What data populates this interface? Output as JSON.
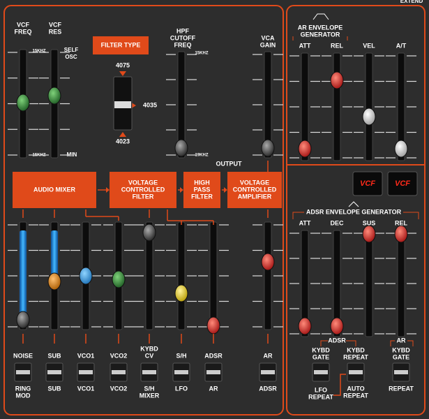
{
  "extend": "EXTEND",
  "vcf_freq": [
    "VCF",
    "FREQ"
  ],
  "vcf_res": [
    "VCF",
    "RES"
  ],
  "self_osc": [
    "SELF",
    "OSC"
  ],
  "scale": {
    "vcf_freq_top": "15KHZ",
    "vcf_freq_bottom": "15KHZ",
    "vcf_res_bottom": "MIN",
    "hpf_top": "15KHZ",
    "hpf_bottom": "19KHZ"
  },
  "filter_type": {
    "title": "FILTER TYPE",
    "options": [
      "4075",
      "4035",
      "4023"
    ]
  },
  "hpf": [
    "HPF",
    "CUTOFF",
    "FREQ"
  ],
  "vca_gain": [
    "VCA",
    "GAIN"
  ],
  "output": "OUTPUT",
  "modules": [
    [
      "AUDIO MIXER"
    ],
    [
      "VOLTAGE",
      "CONTROLLED",
      "FILTER"
    ],
    [
      "HIGH",
      "PASS",
      "FILTER"
    ],
    [
      "VOLTAGE",
      "CONTROLLED",
      "AMPLIFIER"
    ]
  ],
  "mixer_inputs": [
    {
      "top": [
        "NOISE"
      ],
      "bottom": [
        "RING",
        "MOD"
      ]
    },
    {
      "top": [
        "SUB"
      ],
      "bottom": [
        "SUB"
      ]
    },
    {
      "top": [
        "VCO1"
      ],
      "bottom": [
        "VCO1"
      ]
    },
    {
      "top": [
        "VCO2"
      ],
      "bottom": [
        "VCO2"
      ]
    },
    {
      "top": [
        "KYBD",
        "CV"
      ],
      "bottom": [
        "S/H",
        "MIXER"
      ]
    },
    {
      "top": [
        "S/H"
      ],
      "bottom": [
        "LFO"
      ]
    },
    {
      "top": [
        "ADSR"
      ],
      "bottom": [
        "AR"
      ]
    },
    {
      "top": [
        "AR"
      ],
      "bottom": [
        "ADSR"
      ]
    }
  ],
  "ar_env": {
    "title": [
      "AR ENVELOPE",
      "GENERATOR"
    ],
    "sliders": [
      "ATT",
      "REL"
    ]
  },
  "vel": "VEL",
  "at": "A/T",
  "displays": [
    "VCF",
    "VCF"
  ],
  "adsr_env": {
    "title": "ADSR ENVELOPE GENERATOR",
    "sliders": [
      "ATT",
      "DEC",
      "SUS",
      "REL"
    ]
  },
  "adsr_switch": {
    "group": "ADSR",
    "left": [
      "KYBD",
      "GATE"
    ],
    "right": [
      "KYBD",
      "REPEAT"
    ],
    "left_bottom": [
      "LFO",
      "REPEAT"
    ],
    "right_bottom": [
      "AUTO",
      "REPEAT"
    ]
  },
  "ar_switch": {
    "group": "AR",
    "top": [
      "KYBD",
      "GATE"
    ],
    "bottom": [
      "REPEAT"
    ]
  }
}
